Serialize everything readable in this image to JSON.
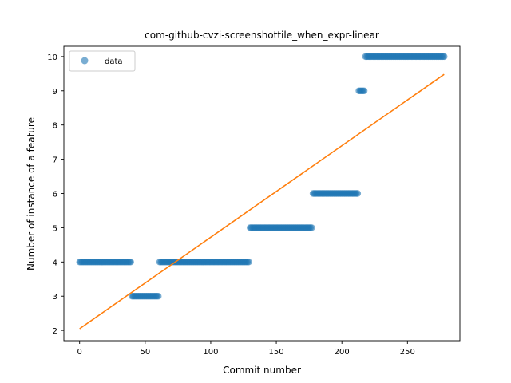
{
  "chart_data": {
    "type": "scatter",
    "title": "com-github-cvzi-screenshottile_when_expr-linear",
    "xlabel": "Commit number",
    "ylabel": "Number of instance of a feature",
    "xlim": [
      -12,
      290
    ],
    "ylim": [
      1.7,
      10.3
    ],
    "xticks": [
      0,
      50,
      100,
      150,
      200,
      250
    ],
    "yticks": [
      2,
      3,
      4,
      5,
      6,
      7,
      8,
      9,
      10
    ],
    "grid": false,
    "legend_position": "top-left",
    "series": [
      {
        "name": "data",
        "kind": "points",
        "color": "#1f77b4",
        "segments": [
          {
            "x_start": 0,
            "x_end": 40,
            "y": 4
          },
          {
            "x_start": 40,
            "x_end": 61,
            "y": 3
          },
          {
            "x_start": 61,
            "x_end": 130,
            "y": 4
          },
          {
            "x_start": 130,
            "x_end": 178,
            "y": 5
          },
          {
            "x_start": 178,
            "x_end": 213,
            "y": 6
          },
          {
            "x_start": 213,
            "x_end": 218,
            "y": 9
          },
          {
            "x_start": 218,
            "x_end": 279,
            "y": 10
          }
        ]
      },
      {
        "kind": "line",
        "color": "#ff7f0e",
        "points": [
          [
            0,
            2.05
          ],
          [
            278,
            9.48
          ]
        ]
      }
    ]
  }
}
